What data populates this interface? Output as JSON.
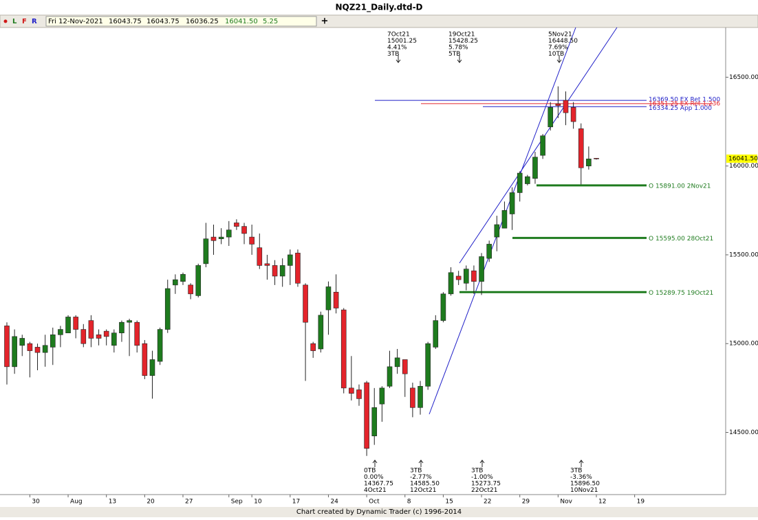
{
  "window_title": "NQZ21_Daily.dtd-D",
  "toolbar": {
    "buttons": [
      "L",
      "F",
      "R"
    ],
    "date": "Fri 12-Nov-2021",
    "values": [
      "16043.75",
      "16043.75",
      "16036.25",
      "16041.50",
      "5.25"
    ]
  },
  "footer": "Chart created by Dynamic Trader  (c) 1996-2014",
  "chart_data": {
    "type": "candlestick",
    "up_color": "#1e7b1e",
    "down_color": "#e3242b",
    "categories": [
      null,
      null,
      null,
      "30",
      null,
      null,
      null,
      null,
      "Aug",
      null,
      null,
      null,
      null,
      "13",
      null,
      null,
      null,
      null,
      "20",
      null,
      null,
      null,
      null,
      "27",
      null,
      null,
      null,
      null,
      null,
      "Sep",
      null,
      null,
      "10",
      null,
      null,
      null,
      null,
      "17",
      null,
      null,
      null,
      null,
      "24",
      null,
      null,
      null,
      null,
      "Oct",
      null,
      null,
      null,
      null,
      "8",
      null,
      null,
      null,
      null,
      "15",
      null,
      null,
      null,
      null,
      "22",
      null,
      null,
      null,
      null,
      "29",
      null,
      null,
      null,
      null,
      "Nov",
      null,
      null,
      null,
      null,
      "12",
      null,
      null,
      null,
      null,
      "19"
    ],
    "open": [
      15100,
      14870,
      14990,
      15000,
      14980,
      14950,
      14980,
      15050,
      15060,
      15150,
      15080,
      15130,
      15050,
      15070,
      14990,
      15060,
      15120,
      15120,
      15000,
      14820,
      14900,
      15080,
      15330,
      15350,
      15330,
      15270,
      15450,
      15600,
      15590,
      15600,
      15680,
      15660,
      15600,
      15540,
      15450,
      15440,
      15380,
      15440,
      15510,
      15330,
      15000,
      14970,
      15190,
      15290,
      15190,
      14750,
      14740,
      14780,
      14480,
      14660,
      14760,
      14870,
      14910,
      14750,
      14640,
      14760,
      14980,
      15130,
      15280,
      15380,
      15340,
      15410,
      15350,
      15480,
      15600,
      15650,
      15730,
      15850,
      15900,
      15930,
      16060,
      16220,
      16350,
      16370,
      16330,
      16210,
      16000,
      16043.75,
      null,
      null,
      null,
      null,
      null
    ],
    "high": [
      15120,
      15080,
      15050,
      15010,
      15000,
      15050,
      15090,
      15100,
      15160,
      15160,
      15110,
      15160,
      15080,
      15080,
      15080,
      15130,
      15140,
      15130,
      15020,
      14960,
      15090,
      15360,
      15390,
      15400,
      15340,
      15450,
      15680,
      15670,
      15650,
      15690,
      15700,
      15680,
      15670,
      15620,
      15500,
      15470,
      15480,
      15530,
      15530,
      15340,
      15010,
      15180,
      15350,
      15390,
      15200,
      14930,
      14770,
      14790,
      14750,
      14760,
      14960,
      14970,
      14910,
      14780,
      14790,
      15010,
      15160,
      15290,
      15430,
      15410,
      15440,
      15440,
      15510,
      15580,
      15720,
      15800,
      15880,
      15970,
      15950,
      16080,
      16180,
      16360,
      16448.5,
      16420,
      16360,
      16240,
      16110,
      16043.75,
      null,
      null,
      null,
      null,
      null
    ],
    "low": [
      14770,
      14830,
      14930,
      14810,
      14850,
      14870,
      14880,
      14980,
      15060,
      15030,
      14980,
      14980,
      14990,
      14990,
      14950,
      15010,
      14930,
      14950,
      14800,
      14690,
      14880,
      15060,
      15280,
      15330,
      15250,
      15260,
      15430,
      15500,
      15560,
      15550,
      15640,
      15560,
      15500,
      15420,
      15360,
      15330,
      15320,
      15330,
      15320,
      14790,
      14920,
      14950,
      15050,
      15170,
      14720,
      14680,
      14650,
      14367.75,
      14430,
      14560,
      14750,
      14830,
      14700,
      14585.5,
      14600,
      14740,
      14970,
      15120,
      15270,
      15330,
      15300,
      15280,
      15273.75,
      15460,
      15520,
      15650,
      15640,
      15800,
      15891,
      15900,
      16040,
      16200,
      16270,
      16230,
      16210,
      15896.5,
      15980,
      16036.25,
      null,
      null,
      null,
      null,
      null
    ],
    "close": [
      14870,
      15040,
      15030,
      14960,
      14950,
      14990,
      15050,
      15080,
      15150,
      15080,
      15000,
      15030,
      15030,
      15040,
      15060,
      15120,
      15130,
      14990,
      14820,
      14910,
      15080,
      15310,
      15360,
      15390,
      15280,
      15440,
      15590,
      15580,
      15600,
      15640,
      15660,
      15620,
      15560,
      15440,
      15440,
      15380,
      15440,
      15500,
      15340,
      15120,
      14960,
      15160,
      15320,
      15200,
      14750,
      14720,
      14690,
      14410,
      14640,
      14750,
      14870,
      14920,
      14830,
      14640,
      14760,
      15000,
      15130,
      15280,
      15400,
      15360,
      15420,
      15350,
      15490,
      15560,
      15670,
      15750,
      15850,
      15960,
      15940,
      16050,
      16170,
      16330,
      16340,
      16300,
      16250,
      15990,
      16040,
      16041.5,
      null,
      null,
      null,
      null,
      null
    ],
    "ylim": [
      14150,
      16780
    ],
    "yticks": [
      {
        "value": 14500,
        "label": "14500.00"
      },
      {
        "value": 15000,
        "label": "15000.00"
      },
      {
        "value": 15500,
        "label": "15500.00"
      },
      {
        "value": 16000,
        "label": "16000.00"
      },
      {
        "value": 16500,
        "label": "16500.00"
      }
    ],
    "current_price": {
      "value": 16041.5,
      "label": "16041.50"
    },
    "levels": [
      {
        "value": 16369.5,
        "label": "16369.50 EX Ret 1.500",
        "color": "#1f1fc8"
      },
      {
        "value": 16351.25,
        "label": "16351.25 EX Ret 1.236",
        "color": "#e3242b"
      },
      {
        "value": 16334.25,
        "label": "16334.25 App 1.000",
        "color": "#1f1fc8"
      },
      {
        "value": 15891.0,
        "label": "O 15891.00 2Nov21",
        "color": "#1e7b1e"
      },
      {
        "value": 15595.0,
        "label": "O 15595.00 28Oct21",
        "color": "#1e7b1e"
      },
      {
        "value": 15289.75,
        "label": "O 15289.75 19Oct21",
        "color": "#1e7b1e"
      }
    ],
    "swing_labels": [
      {
        "lines": [
          "7Oct21",
          "15001.25",
          "4.41%",
          "3TB"
        ]
      },
      {
        "lines": [
          "19Oct21",
          "15428.25",
          "5.78%",
          "5TB"
        ]
      },
      {
        "lines": [
          "5Nov21",
          "16448.50",
          "7.69%",
          "10TB"
        ]
      },
      {
        "lines": [
          "0TB",
          "0.00%",
          "14367.75",
          "4Oct21"
        ]
      },
      {
        "lines": [
          "3TB",
          "-2.77%",
          "14585.50",
          "12Oct21"
        ]
      },
      {
        "lines": [
          "3TB",
          "-1.00%",
          "15273.75",
          "22Oct21"
        ]
      },
      {
        "lines": [
          "3TB",
          "-3.36%",
          "15896.50",
          "10Nov21"
        ]
      }
    ]
  }
}
